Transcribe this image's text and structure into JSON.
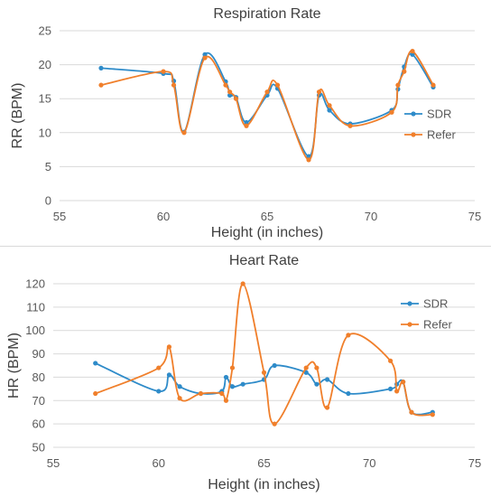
{
  "chart_data": [
    {
      "type": "line",
      "title": "Respiration Rate",
      "xlabel": "Height (in inches)",
      "ylabel": "RR (BPM)",
      "xlim": [
        55,
        75
      ],
      "ylim": [
        0,
        25
      ],
      "xticks": [
        55,
        60,
        65,
        70,
        75
      ],
      "yticks": [
        0,
        5,
        10,
        15,
        20,
        25
      ],
      "grid": "horizontal",
      "legend": "right",
      "series": [
        {
          "name": "SDR",
          "color": "#2E8BC9",
          "points": [
            [
              57,
              19.5
            ],
            [
              60,
              18.7
            ],
            [
              60.5,
              17.6
            ],
            [
              61,
              10.1
            ],
            [
              62,
              21.5
            ],
            [
              63,
              17.5
            ],
            [
              63.2,
              15.5
            ],
            [
              63.5,
              15.2
            ],
            [
              64,
              11.5
            ],
            [
              65,
              15.5
            ],
            [
              65.5,
              16.5
            ],
            [
              67,
              6.5
            ],
            [
              67.5,
              15.5
            ],
            [
              68,
              13.3
            ],
            [
              69,
              11.3
            ],
            [
              71,
              13.3
            ],
            [
              71.3,
              16.4
            ],
            [
              71.6,
              19.7
            ],
            [
              72,
              21.5
            ],
            [
              73,
              16.7
            ]
          ]
        },
        {
          "name": "Refer",
          "color": "#F07F2B",
          "points": [
            [
              57,
              17
            ],
            [
              60,
              19
            ],
            [
              60.5,
              17
            ],
            [
              61,
              10
            ],
            [
              62,
              21
            ],
            [
              63,
              17
            ],
            [
              63.2,
              16
            ],
            [
              63.5,
              15
            ],
            [
              64,
              11
            ],
            [
              65,
              16
            ],
            [
              65.5,
              17
            ],
            [
              67,
              6
            ],
            [
              67.5,
              16
            ],
            [
              68,
              14
            ],
            [
              69,
              11
            ],
            [
              71,
              13
            ],
            [
              71.3,
              17
            ],
            [
              71.6,
              19
            ],
            [
              72,
              22
            ],
            [
              73,
              17
            ]
          ]
        }
      ]
    },
    {
      "type": "line",
      "title": "Heart Rate",
      "xlabel": "Height (in inches)",
      "ylabel": "HR (BPM)",
      "xlim": [
        55,
        75
      ],
      "ylim": [
        50,
        120
      ],
      "xticks": [
        55,
        60,
        65,
        70,
        75
      ],
      "yticks": [
        50,
        60,
        70,
        80,
        90,
        100,
        110,
        120
      ],
      "grid": "horizontal",
      "legend": "right",
      "series": [
        {
          "name": "SDR",
          "color": "#2E8BC9",
          "points": [
            [
              57,
              86
            ],
            [
              60,
              74
            ],
            [
              60.5,
              81
            ],
            [
              61,
              76
            ],
            [
              62,
              73
            ],
            [
              63,
              74
            ],
            [
              63.2,
              80
            ],
            [
              63.5,
              76
            ],
            [
              64,
              77
            ],
            [
              65,
              79
            ],
            [
              65.5,
              85
            ],
            [
              67,
              82
            ],
            [
              67.5,
              77
            ],
            [
              68,
              79
            ],
            [
              69,
              73
            ],
            [
              71,
              75
            ],
            [
              71.3,
              77
            ],
            [
              71.6,
              78
            ],
            [
              72,
              65
            ],
            [
              73,
              65
            ]
          ]
        },
        {
          "name": "Refer",
          "color": "#F07F2B",
          "points": [
            [
              57,
              73
            ],
            [
              60,
              84
            ],
            [
              60.5,
              93
            ],
            [
              61,
              71
            ],
            [
              62,
              73
            ],
            [
              63,
              73
            ],
            [
              63.2,
              70
            ],
            [
              63.5,
              84
            ],
            [
              64,
              120
            ],
            [
              65,
              82
            ],
            [
              65.5,
              60
            ],
            [
              67,
              84
            ],
            [
              67.5,
              84
            ],
            [
              68,
              67
            ],
            [
              69,
              98
            ],
            [
              71,
              87
            ],
            [
              71.3,
              74
            ],
            [
              71.6,
              78
            ],
            [
              72,
              65
            ],
            [
              73,
              64
            ]
          ]
        }
      ]
    }
  ]
}
